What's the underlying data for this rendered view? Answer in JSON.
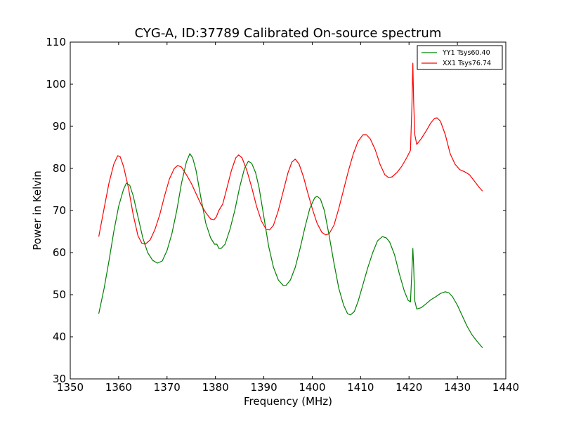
{
  "chart_data": {
    "type": "line",
    "title": "CYG-A, ID:37789 Calibrated On-source spectrum",
    "xlabel": "Frequency (MHz)",
    "ylabel": "Power in Kelvin",
    "xlim": [
      1350,
      1440
    ],
    "ylim": [
      30,
      110
    ],
    "xticks": [
      "1350",
      "1360",
      "1370",
      "1380",
      "1390",
      "1400",
      "1410",
      "1420",
      "1430",
      "1440"
    ],
    "yticks": [
      "30",
      "40",
      "50",
      "60",
      "70",
      "80",
      "90",
      "100",
      "110"
    ],
    "grid": false,
    "legend_position": "top-right",
    "series": [
      {
        "name": "YY1 Tsys60.40",
        "color": "#008000",
        "points": [
          [
            1355.9,
            45.5
          ],
          [
            1357.0,
            51.5
          ],
          [
            1358.0,
            58.0
          ],
          [
            1359.0,
            65.0
          ],
          [
            1360.0,
            71.0
          ],
          [
            1361.0,
            75.0
          ],
          [
            1361.6,
            76.5
          ],
          [
            1362.3,
            76.0
          ],
          [
            1363.0,
            73.5
          ],
          [
            1364.0,
            68.5
          ],
          [
            1365.0,
            63.5
          ],
          [
            1366.0,
            60.0
          ],
          [
            1367.0,
            58.2
          ],
          [
            1368.0,
            57.5
          ],
          [
            1369.0,
            58.0
          ],
          [
            1370.0,
            60.5
          ],
          [
            1371.0,
            64.5
          ],
          [
            1372.0,
            70.0
          ],
          [
            1373.0,
            76.5
          ],
          [
            1374.0,
            81.5
          ],
          [
            1374.7,
            83.5
          ],
          [
            1375.3,
            82.5
          ],
          [
            1376.0,
            79.5
          ],
          [
            1377.0,
            73.0
          ],
          [
            1378.0,
            67.0
          ],
          [
            1379.0,
            63.5
          ],
          [
            1379.8,
            62.0
          ],
          [
            1380.3,
            62.0
          ],
          [
            1380.7,
            61.0
          ],
          [
            1381.2,
            61.0
          ],
          [
            1382.0,
            62.0
          ],
          [
            1383.0,
            65.5
          ],
          [
            1384.0,
            70.0
          ],
          [
            1385.0,
            75.5
          ],
          [
            1386.0,
            80.0
          ],
          [
            1386.8,
            81.7
          ],
          [
            1387.5,
            81.2
          ],
          [
            1388.3,
            79.0
          ],
          [
            1389.0,
            75.5
          ],
          [
            1390.0,
            68.5
          ],
          [
            1391.0,
            61.5
          ],
          [
            1392.0,
            56.5
          ],
          [
            1393.0,
            53.5
          ],
          [
            1394.0,
            52.2
          ],
          [
            1394.6,
            52.2
          ],
          [
            1395.5,
            53.5
          ],
          [
            1396.5,
            56.5
          ],
          [
            1397.5,
            61.0
          ],
          [
            1398.5,
            66.0
          ],
          [
            1399.5,
            70.5
          ],
          [
            1400.5,
            73.0
          ],
          [
            1401.0,
            73.4
          ],
          [
            1401.7,
            72.7
          ],
          [
            1402.5,
            70.0
          ],
          [
            1403.5,
            64.0
          ],
          [
            1404.5,
            57.5
          ],
          [
            1405.5,
            51.5
          ],
          [
            1406.5,
            47.5
          ],
          [
            1407.3,
            45.5
          ],
          [
            1407.9,
            45.2
          ],
          [
            1408.7,
            46.0
          ],
          [
            1409.5,
            48.5
          ],
          [
            1410.5,
            52.5
          ],
          [
            1411.5,
            56.5
          ],
          [
            1412.5,
            60.0
          ],
          [
            1413.5,
            62.8
          ],
          [
            1414.5,
            63.8
          ],
          [
            1415.3,
            63.5
          ],
          [
            1416.0,
            62.5
          ],
          [
            1417.0,
            59.5
          ],
          [
            1418.0,
            55.0
          ],
          [
            1419.0,
            51.0
          ],
          [
            1419.8,
            48.7
          ],
          [
            1420.3,
            48.3
          ],
          [
            1420.65,
            57.0
          ],
          [
            1420.8,
            61.0
          ],
          [
            1420.95,
            57.0
          ],
          [
            1421.2,
            48.5
          ],
          [
            1421.6,
            46.6
          ],
          [
            1422.5,
            46.9
          ],
          [
            1423.5,
            47.8
          ],
          [
            1424.5,
            48.8
          ],
          [
            1425.5,
            49.5
          ],
          [
            1426.5,
            50.3
          ],
          [
            1427.5,
            50.7
          ],
          [
            1428.3,
            50.4
          ],
          [
            1429.0,
            49.5
          ],
          [
            1430.0,
            47.5
          ],
          [
            1431.0,
            45.0
          ],
          [
            1432.0,
            42.5
          ],
          [
            1433.0,
            40.5
          ],
          [
            1434.0,
            39.0
          ],
          [
            1435.2,
            37.4
          ]
        ]
      },
      {
        "name": "XX1 Tsys76.74",
        "color": "#ff0000",
        "points": [
          [
            1355.9,
            63.8
          ],
          [
            1357.0,
            70.5
          ],
          [
            1358.0,
            76.5
          ],
          [
            1359.0,
            81.0
          ],
          [
            1359.8,
            83.0
          ],
          [
            1360.3,
            82.8
          ],
          [
            1361.0,
            80.5
          ],
          [
            1362.0,
            75.5
          ],
          [
            1363.0,
            69.0
          ],
          [
            1364.0,
            64.0
          ],
          [
            1364.8,
            62.2
          ],
          [
            1365.5,
            62.0
          ],
          [
            1366.5,
            63.0
          ],
          [
            1367.5,
            65.5
          ],
          [
            1368.5,
            69.0
          ],
          [
            1369.5,
            73.5
          ],
          [
            1370.5,
            77.5
          ],
          [
            1371.5,
            80.0
          ],
          [
            1372.2,
            80.7
          ],
          [
            1373.0,
            80.3
          ],
          [
            1374.0,
            78.5
          ],
          [
            1375.0,
            76.5
          ],
          [
            1376.0,
            74.0
          ],
          [
            1377.0,
            71.5
          ],
          [
            1378.0,
            69.5
          ],
          [
            1379.0,
            68.0
          ],
          [
            1379.7,
            67.8
          ],
          [
            1380.2,
            68.5
          ],
          [
            1380.7,
            70.0
          ],
          [
            1381.5,
            71.5
          ],
          [
            1382.3,
            75.0
          ],
          [
            1383.3,
            79.5
          ],
          [
            1384.2,
            82.5
          ],
          [
            1384.8,
            83.2
          ],
          [
            1385.5,
            82.5
          ],
          [
            1386.5,
            79.5
          ],
          [
            1387.5,
            75.5
          ],
          [
            1388.5,
            71.0
          ],
          [
            1389.5,
            67.5
          ],
          [
            1390.5,
            65.5
          ],
          [
            1391.2,
            65.4
          ],
          [
            1392.0,
            66.5
          ],
          [
            1393.0,
            70.0
          ],
          [
            1394.0,
            74.5
          ],
          [
            1395.0,
            79.0
          ],
          [
            1395.8,
            81.5
          ],
          [
            1396.5,
            82.2
          ],
          [
            1397.3,
            81.0
          ],
          [
            1398.2,
            78.0
          ],
          [
            1399.0,
            74.5
          ],
          [
            1400.0,
            70.5
          ],
          [
            1401.0,
            67.0
          ],
          [
            1402.0,
            64.8
          ],
          [
            1402.8,
            64.2
          ],
          [
            1403.5,
            64.5
          ],
          [
            1404.5,
            66.5
          ],
          [
            1405.5,
            70.5
          ],
          [
            1406.5,
            75.0
          ],
          [
            1407.5,
            79.5
          ],
          [
            1408.5,
            83.5
          ],
          [
            1409.5,
            86.5
          ],
          [
            1410.5,
            88.0
          ],
          [
            1411.2,
            88.0
          ],
          [
            1412.0,
            87.0
          ],
          [
            1413.0,
            84.5
          ],
          [
            1414.0,
            81.0
          ],
          [
            1415.0,
            78.5
          ],
          [
            1415.8,
            77.8
          ],
          [
            1416.5,
            78.0
          ],
          [
            1417.5,
            79.0
          ],
          [
            1418.5,
            80.5
          ],
          [
            1419.5,
            82.5
          ],
          [
            1420.3,
            84.3
          ],
          [
            1420.6,
            95.0
          ],
          [
            1420.8,
            105.0
          ],
          [
            1420.95,
            96.0
          ],
          [
            1421.2,
            88.0
          ],
          [
            1421.6,
            85.7
          ],
          [
            1422.5,
            87.0
          ],
          [
            1423.5,
            88.8
          ],
          [
            1424.5,
            90.8
          ],
          [
            1425.3,
            91.9
          ],
          [
            1425.8,
            92.0
          ],
          [
            1426.5,
            91.2
          ],
          [
            1427.5,
            88.0
          ],
          [
            1428.5,
            83.5
          ],
          [
            1429.5,
            81.0
          ],
          [
            1430.5,
            79.7
          ],
          [
            1431.5,
            79.2
          ],
          [
            1432.5,
            78.5
          ],
          [
            1433.5,
            77.0
          ],
          [
            1434.5,
            75.5
          ],
          [
            1435.2,
            74.6
          ]
        ]
      }
    ]
  }
}
